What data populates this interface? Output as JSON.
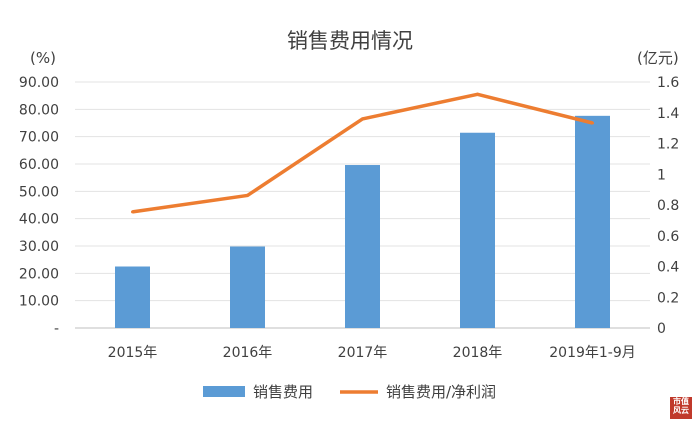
{
  "chart_data": {
    "type": "bar",
    "title": "销售费用情况",
    "left_axis_unit": "(%)",
    "right_axis_unit": "(亿元)",
    "categories": [
      "2015年",
      "2016年",
      "2017年",
      "2018年",
      "2019年1-9月"
    ],
    "left_ticks": [
      "-",
      "10.00",
      "20.00",
      "30.00",
      "40.00",
      "50.00",
      "60.00",
      "70.00",
      "80.00",
      "90.00"
    ],
    "right_ticks": [
      "0",
      "0.2",
      "0.4",
      "0.6",
      "0.8",
      "1",
      "1.2",
      "1.4",
      "1.6"
    ],
    "ylim_left": [
      0,
      90
    ],
    "ylim_right": [
      0,
      1.6
    ],
    "series": [
      {
        "name": "销售费用",
        "type": "bar",
        "axis": "right",
        "color": "#5b9bd5",
        "values": [
          0.4,
          0.53,
          1.06,
          1.27,
          1.38
        ]
      },
      {
        "name": "销售费用/净利润",
        "type": "line",
        "axis": "left",
        "color": "#ed7d31",
        "values": [
          42.5,
          48.5,
          76.5,
          85.5,
          75.0
        ]
      }
    ],
    "grid": true,
    "legend": "bottom"
  },
  "brand": {
    "line1": "市值",
    "line2": "风云"
  }
}
